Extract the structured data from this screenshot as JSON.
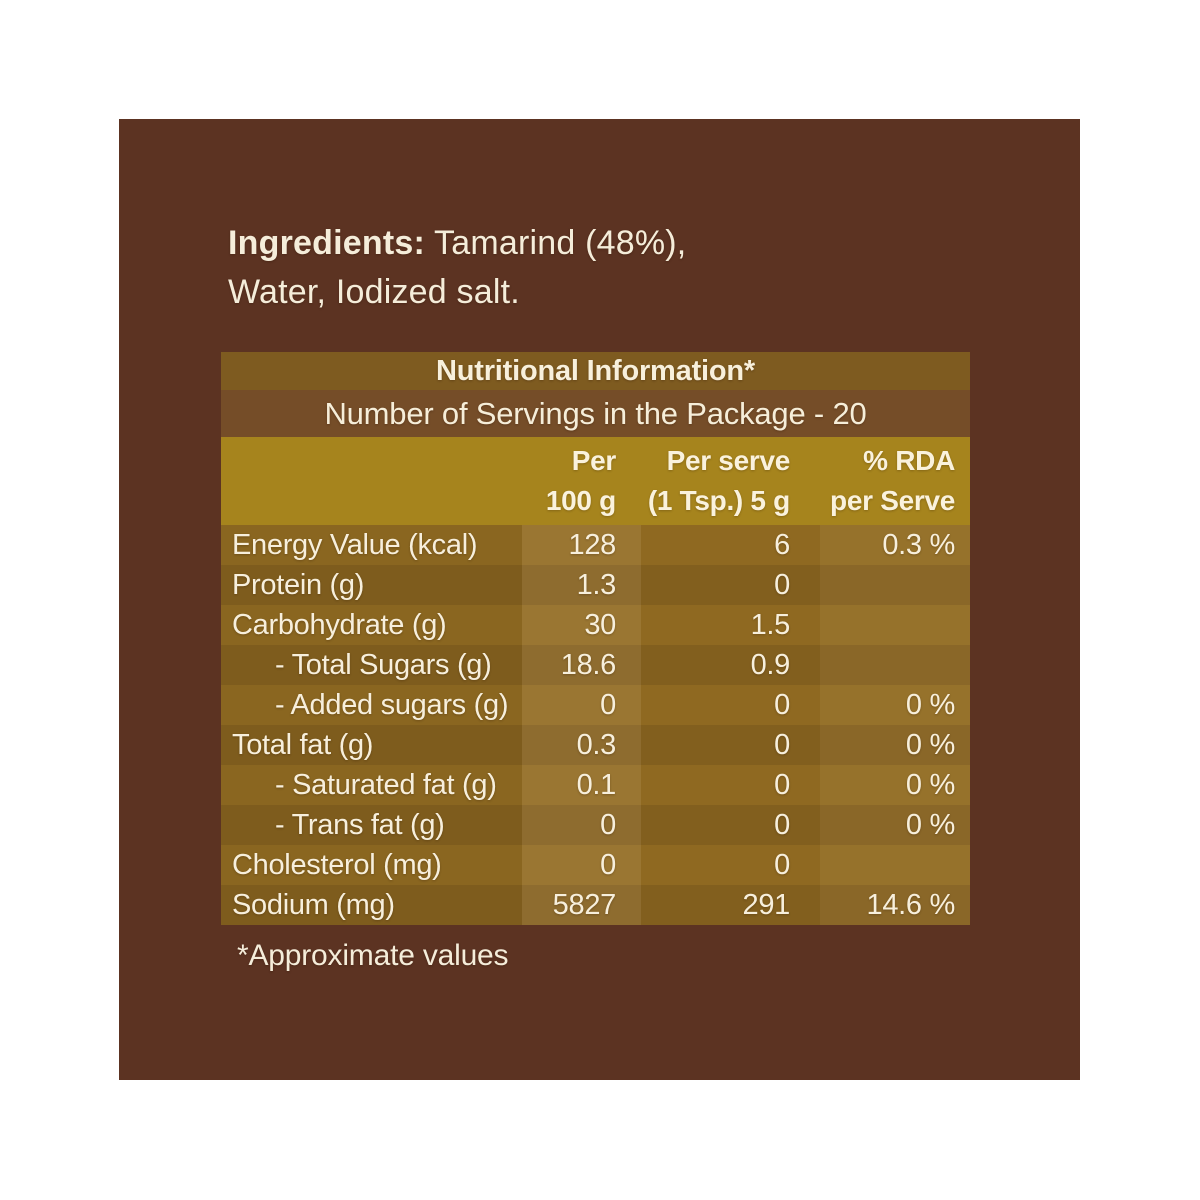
{
  "colors": {
    "canvas_white": "#ffffff",
    "package_brown": "#5c3322",
    "title_band": "#7e5b20",
    "servings_band": "#754d28",
    "column_header_gold": "#a6841d",
    "row_light": "#926c22",
    "row_dark": "#85611f",
    "text_cream": "#f6eed9"
  },
  "ingredients": {
    "label": "Ingredients:",
    "line1_rest": " Tamarind (48%),",
    "line2": "Water, Iodized salt."
  },
  "table": {
    "title": "Nutritional Information*",
    "servings": "Number of Servings in the Package - 20",
    "columns": [
      {
        "line1": "Per",
        "line2": "100 g"
      },
      {
        "line1": "Per serve",
        "line2": "(1 Tsp.) 5 g"
      },
      {
        "line1": "% RDA",
        "line2": "per Serve"
      }
    ],
    "rows": [
      {
        "label": "Energy Value (kcal)",
        "indent": false,
        "per100": "128",
        "perServe": "6",
        "rda": "0.3 %"
      },
      {
        "label": "Protein (g)",
        "indent": false,
        "per100": "1.3",
        "perServe": "0",
        "rda": ""
      },
      {
        "label": "Carbohydrate (g)",
        "indent": false,
        "per100": "30",
        "perServe": "1.5",
        "rda": ""
      },
      {
        "label": "- Total Sugars (g)",
        "indent": true,
        "per100": "18.6",
        "perServe": "0.9",
        "rda": ""
      },
      {
        "label": "- Added sugars (g)",
        "indent": true,
        "per100": "0",
        "perServe": "0",
        "rda": "0 %"
      },
      {
        "label": "Total fat (g)",
        "indent": false,
        "per100": "0.3",
        "perServe": "0",
        "rda": "0 %"
      },
      {
        "label": "- Saturated fat (g)",
        "indent": true,
        "per100": "0.1",
        "perServe": "0",
        "rda": "0 %"
      },
      {
        "label": "- Trans fat (g)",
        "indent": true,
        "per100": "0",
        "perServe": "0",
        "rda": "0 %"
      },
      {
        "label": "Cholesterol (mg)",
        "indent": false,
        "per100": "0",
        "perServe": "0",
        "rda": ""
      },
      {
        "label": "Sodium (mg)",
        "indent": false,
        "per100": "5827",
        "perServe": "291",
        "rda": "14.6 %"
      }
    ],
    "footnote": "*Approximate values"
  }
}
